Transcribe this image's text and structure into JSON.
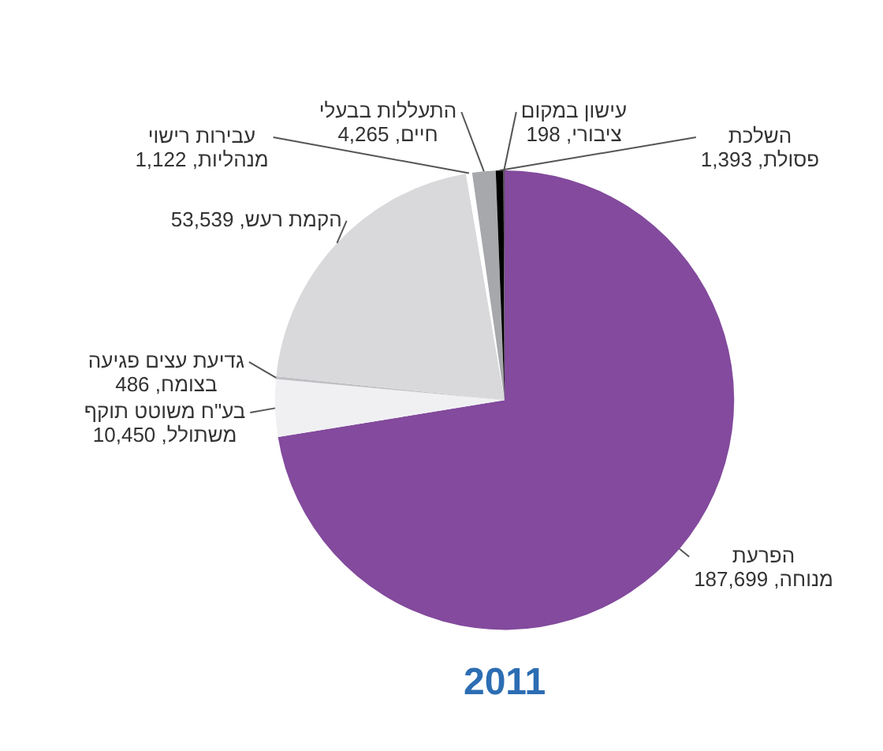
{
  "chart_data": {
    "type": "pie",
    "title": "2011",
    "categories": [
      "הפרעת מנוחה",
      "בע\"ח משוטט תוקף משתולל",
      "גדיעת עצים פגיעה בצומח",
      "הקמת רעש",
      "עבירות רישוי מנהליות",
      "התעללות בבעלי חיים",
      "השלכת פסולת",
      "עישון במקום ציבורי"
    ],
    "values": [
      187699,
      10450,
      486,
      53539,
      1122,
      4265,
      1393,
      198
    ],
    "value_labels": [
      "187,699",
      "10,450",
      "486",
      "53,539",
      "1,122",
      "4,265",
      "1,393",
      "198"
    ],
    "colors": [
      "#834a9d",
      "#f0f0f2",
      "#bfbfc4",
      "#d9d9dc",
      "#ffffff",
      "#a7a8ac",
      "#000000",
      "#555555"
    ],
    "legend": false
  }
}
